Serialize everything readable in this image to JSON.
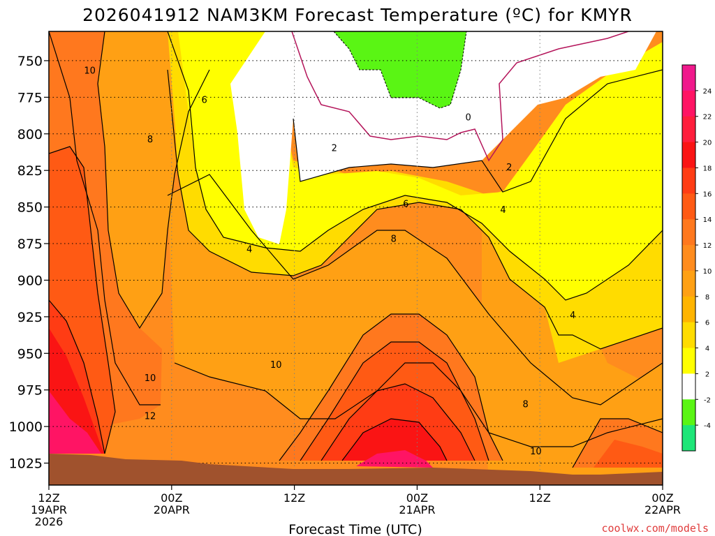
{
  "chart_data": {
    "type": "heatmap",
    "title": "2026041912 NAM3KM Forecast Temperature (ºC) for KMYR",
    "xlabel": "Forecast Time (UTC)",
    "ylabel": "",
    "credit": "coolwx.com/models",
    "y_scale": "linear",
    "y_reversed": true,
    "ylim": [
      1040,
      730
    ],
    "y_ticks": [
      750,
      775,
      800,
      825,
      850,
      875,
      900,
      925,
      950,
      975,
      1000,
      1025
    ],
    "x_range_hours": [
      0,
      60
    ],
    "x_ticks": [
      {
        "hour": 0,
        "label1": "12Z",
        "label2": "19APR",
        "label3": "2026"
      },
      {
        "hour": 12,
        "label1": "00Z",
        "label2": "20APR",
        "label3": ""
      },
      {
        "hour": 24,
        "label1": "12Z",
        "label2": "",
        "label3": ""
      },
      {
        "hour": 36,
        "label1": "00Z",
        "label2": "21APR",
        "label3": ""
      },
      {
        "hour": 48,
        "label1": "12Z",
        "label2": "",
        "label3": ""
      },
      {
        "hour": 60,
        "label1": "00Z",
        "label2": "22APR",
        "label3": ""
      }
    ],
    "grid": true,
    "contour_labels": [
      {
        "value": 10,
        "label": "10",
        "hour": 4.0,
        "p": 757
      },
      {
        "value": 6,
        "label": "6",
        "hour": 15.2,
        "p": 777
      },
      {
        "value": 8,
        "label": "8",
        "hour": 9.9,
        "p": 804
      },
      {
        "value": 2,
        "label": "2",
        "hour": 27.9,
        "p": 810
      },
      {
        "value": 0,
        "label": "0",
        "hour": 41.0,
        "p": 789
      },
      {
        "value": 2,
        "label": "2",
        "hour": 45.0,
        "p": 823
      },
      {
        "value": 6,
        "label": "6",
        "hour": 34.9,
        "p": 848
      },
      {
        "value": 4,
        "label": "4",
        "hour": 44.4,
        "p": 852
      },
      {
        "value": 8,
        "label": "8",
        "hour": 33.7,
        "p": 872
      },
      {
        "value": 4,
        "label": "4",
        "hour": 19.6,
        "p": 879
      },
      {
        "value": 4,
        "label": "4",
        "hour": 51.2,
        "p": 924
      },
      {
        "value": 10,
        "label": "10",
        "hour": 22.2,
        "p": 958
      },
      {
        "value": 10,
        "label": "10",
        "hour": 9.9,
        "p": 967
      },
      {
        "value": 8,
        "label": "8",
        "hour": 46.6,
        "p": 985
      },
      {
        "value": 12,
        "label": "12",
        "hour": 9.9,
        "p": 993
      },
      {
        "value": 10,
        "label": "10",
        "hour": 47.6,
        "p": 1017
      }
    ],
    "colorbar": {
      "labels": [
        24,
        22,
        20,
        18,
        16,
        14,
        12,
        10,
        8,
        6,
        4,
        2,
        -2,
        -4
      ],
      "bands": [
        {
          "range": [
            24,
            26
          ],
          "color": "#f0198c"
        },
        {
          "range": [
            22,
            24
          ],
          "color": "#ff1464"
        },
        {
          "range": [
            20,
            22
          ],
          "color": "#ff1e3c"
        },
        {
          "range": [
            18,
            20
          ],
          "color": "#fa1414"
        },
        {
          "range": [
            16,
            18
          ],
          "color": "#ff3c14"
        },
        {
          "range": [
            14,
            16
          ],
          "color": "#ff5a14"
        },
        {
          "range": [
            12,
            14
          ],
          "color": "#ff781e"
        },
        {
          "range": [
            10,
            12
          ],
          "color": "#ff8c1e"
        },
        {
          "range": [
            8,
            10
          ],
          "color": "#ffa014"
        },
        {
          "range": [
            6,
            8
          ],
          "color": "#ffb400"
        },
        {
          "range": [
            4,
            6
          ],
          "color": "#ffdc00"
        },
        {
          "range": [
            2,
            4
          ],
          "color": "#ffff00"
        },
        {
          "range": [
            -2,
            2
          ],
          "color": "#ffffff"
        },
        {
          "range": [
            -4,
            -2
          ],
          "color": "#5af514"
        },
        {
          "range": [
            -6,
            -4
          ],
          "color": "#1ee678"
        }
      ]
    },
    "colors": {
      "ground": "#a0522d",
      "zero_contour": "#b4145a",
      "contour": "#000000",
      "grid": "#000000"
    }
  }
}
